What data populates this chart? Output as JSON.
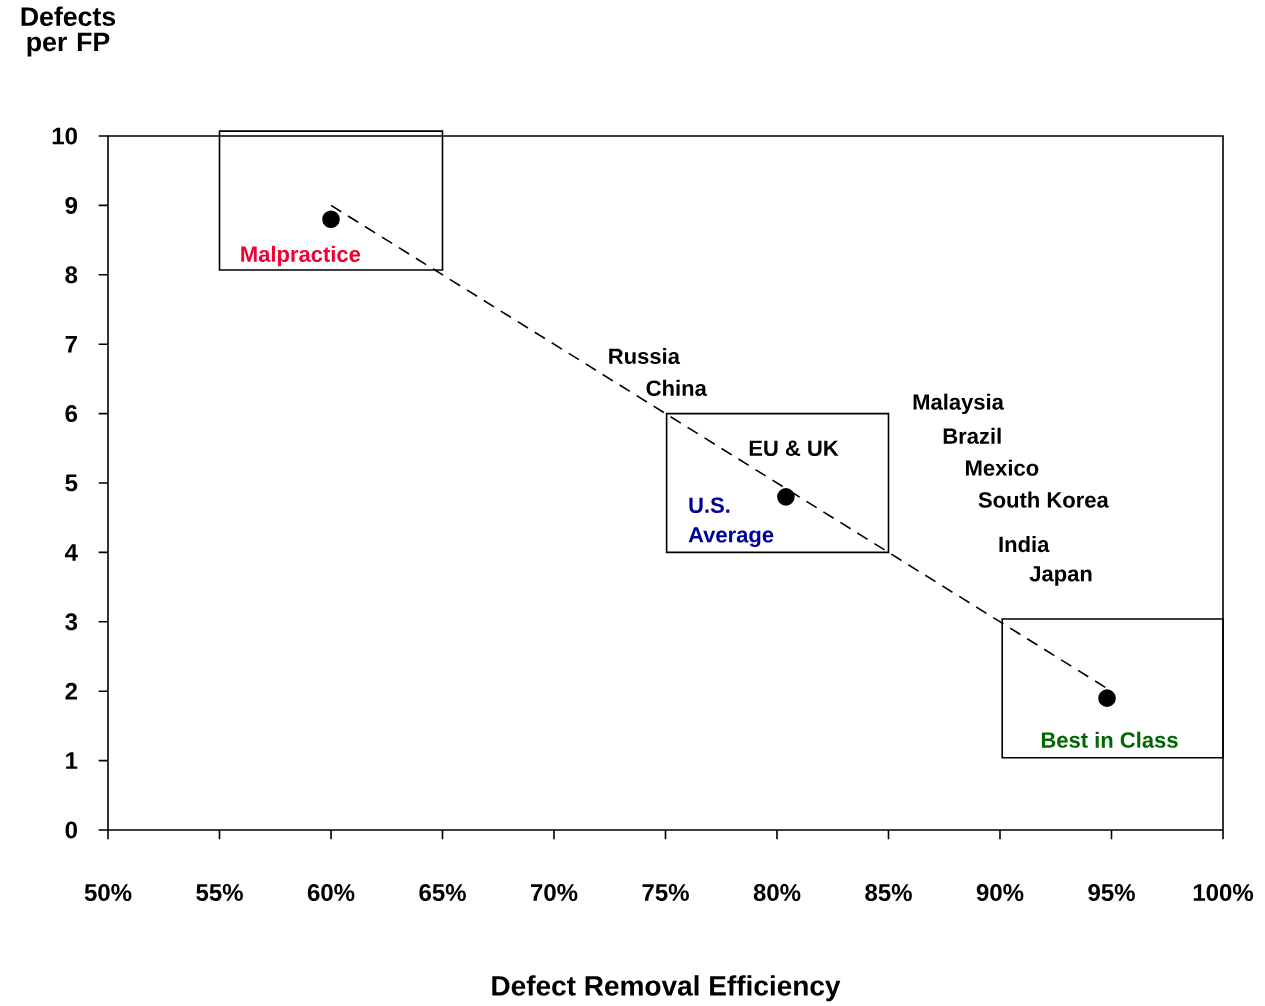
{
  "chart_data": {
    "type": "scatter",
    "xlabel": "Defect Removal Efficiency",
    "ylabel": "Defects per FP",
    "xlim": [
      50,
      100
    ],
    "ylim": [
      0,
      10
    ],
    "xticks": [
      {
        "value": 50,
        "label": "50%"
      },
      {
        "value": 55,
        "label": "55%"
      },
      {
        "value": 60,
        "label": "60%"
      },
      {
        "value": 65,
        "label": "65%"
      },
      {
        "value": 70,
        "label": "70%"
      },
      {
        "value": 75,
        "label": "75%"
      },
      {
        "value": 80,
        "label": "80%"
      },
      {
        "value": 85,
        "label": "85%"
      },
      {
        "value": 90,
        "label": "90%"
      },
      {
        "value": 95,
        "label": "95%"
      },
      {
        "value": 100,
        "label": "100%"
      }
    ],
    "yticks": [
      0,
      1,
      2,
      3,
      4,
      5,
      6,
      7,
      8,
      9,
      10
    ],
    "marker": "circle",
    "series": [
      {
        "color": "#000000",
        "x": [
          60,
          80.4,
          94.8
        ],
        "values": [
          8.8,
          4.8,
          1.9
        ]
      },
      {
        "type": "line",
        "marker": "none",
        "line_style": "dashed",
        "color": "#000000",
        "x": [
          60,
          95
        ],
        "values": [
          9,
          2
        ]
      }
    ],
    "annotations": [
      "Malpractice",
      "Russia",
      "China",
      "EU & UK",
      "U.S.",
      "Average",
      "Malaysia",
      "Brazil",
      "Mexico",
      "South Korea",
      "India",
      "Japan",
      "Best in Class"
    ]
  }
}
